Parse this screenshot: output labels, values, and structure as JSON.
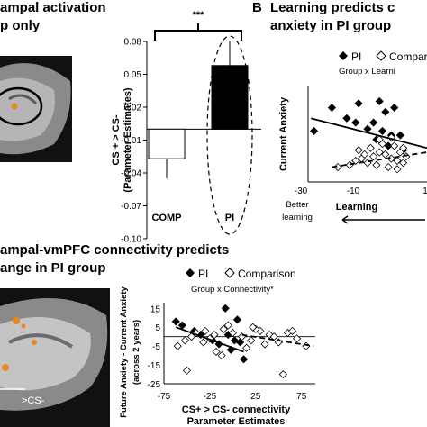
{
  "headings": {
    "a_line1": "ampal activation",
    "a_line2": "p only",
    "b_letter": "B",
    "b_line1": "Learning predicts c",
    "b_line2": "anxiety in PI group",
    "c_line1": "ampal-vmPFC connectivity predicts",
    "c_line2": "ange in PI group"
  },
  "brain_labels": {
    "bottom_left": ">CS-"
  },
  "colors": {
    "bar_pi": "#000000",
    "bar_comp": "#ffffff",
    "brain_activation": "#e8891e"
  },
  "chart_data": [
    {
      "type": "bar",
      "categories": [
        "COMP",
        "PI"
      ],
      "values": [
        -0.027,
        0.058
      ],
      "errors": [
        0.018,
        0.022
      ],
      "ylabel": "CS + > CS-\n(Parameter Estimates)",
      "ylim": [
        -0.1,
        0.08
      ],
      "yticks": [
        "0.08",
        "0.05",
        "0.02",
        "-0.01",
        "-0.04",
        "-0.07",
        "-0.10"
      ],
      "significance": "***"
    },
    {
      "type": "scatter",
      "legend": [
        "PI",
        "Compar"
      ],
      "annotation": "Group x Learni",
      "ylabel": "Current Anxiety",
      "xlabel": "Learning",
      "xticks": [
        "-30",
        "-10",
        "1"
      ],
      "xlim": [
        -30,
        10
      ],
      "note": "Better\nlearning",
      "series": [
        {
          "name": "PI",
          "x": [
            -28,
            -22,
            -17,
            -13,
            -6,
            -4,
            -1,
            -8,
            -2,
            -14,
            -10,
            -5,
            1,
            -3,
            -7,
            2
          ],
          "y": [
            24,
            35,
            30,
            37,
            38,
            33,
            35,
            28,
            22,
            28,
            25,
            24,
            22,
            17,
            20,
            15
          ]
        },
        {
          "name": "Compar",
          "x": [
            -20,
            -16,
            -14,
            -12,
            -10,
            -8,
            -6,
            -4,
            -2,
            0,
            2,
            -13,
            -9,
            -5,
            -1,
            1,
            -7,
            -3,
            -11,
            3,
            -6,
            -2,
            0,
            2
          ],
          "y": [
            7,
            8,
            10,
            11,
            9,
            12,
            14,
            13,
            11,
            10,
            9,
            15,
            16,
            18,
            17,
            14,
            8,
            7,
            13,
            12,
            20,
            21,
            6,
            16
          ]
        }
      ]
    },
    {
      "type": "scatter",
      "legend": [
        "PI",
        "Comparison"
      ],
      "annotation": "Group x Connectivity*",
      "ylabel": "Future Anxiety - Current Anxiety\n(across 2 years)",
      "xlabel": "CS+ > CS- connectivity\nParameter Estimates",
      "xlim": [
        -75,
        90
      ],
      "ylim": [
        -25,
        18
      ],
      "xticks": [
        "-75",
        "-25",
        "25",
        "75"
      ],
      "yticks": [
        "15",
        "5",
        "-5",
        "-15",
        "-25"
      ],
      "series": [
        {
          "name": "PI",
          "x": [
            -62,
            -55,
            -42,
            -35,
            -22,
            -15,
            -8,
            -5,
            -2,
            2,
            5,
            8,
            12
          ],
          "y": [
            8,
            6,
            3,
            1,
            -2,
            -4,
            15,
            1,
            -7,
            -2,
            9,
            -3,
            -12
          ]
        },
        {
          "name": "Comparison",
          "x": [
            -60,
            -52,
            -45,
            -40,
            -30,
            -25,
            -20,
            -10,
            0,
            10,
            20,
            30,
            40,
            50,
            60,
            70,
            -18,
            -12,
            15,
            25,
            35,
            45,
            -50,
            -5,
            55,
            65,
            80,
            22,
            -32
          ],
          "y": [
            -5,
            -2,
            0,
            2,
            3,
            -1,
            1,
            4,
            2,
            0,
            -2,
            3,
            1,
            -3,
            2,
            -1,
            -8,
            -10,
            -6,
            4,
            -4,
            0,
            -18,
            6,
            -20,
            3,
            -5,
            5,
            -3
          ]
        }
      ]
    }
  ]
}
